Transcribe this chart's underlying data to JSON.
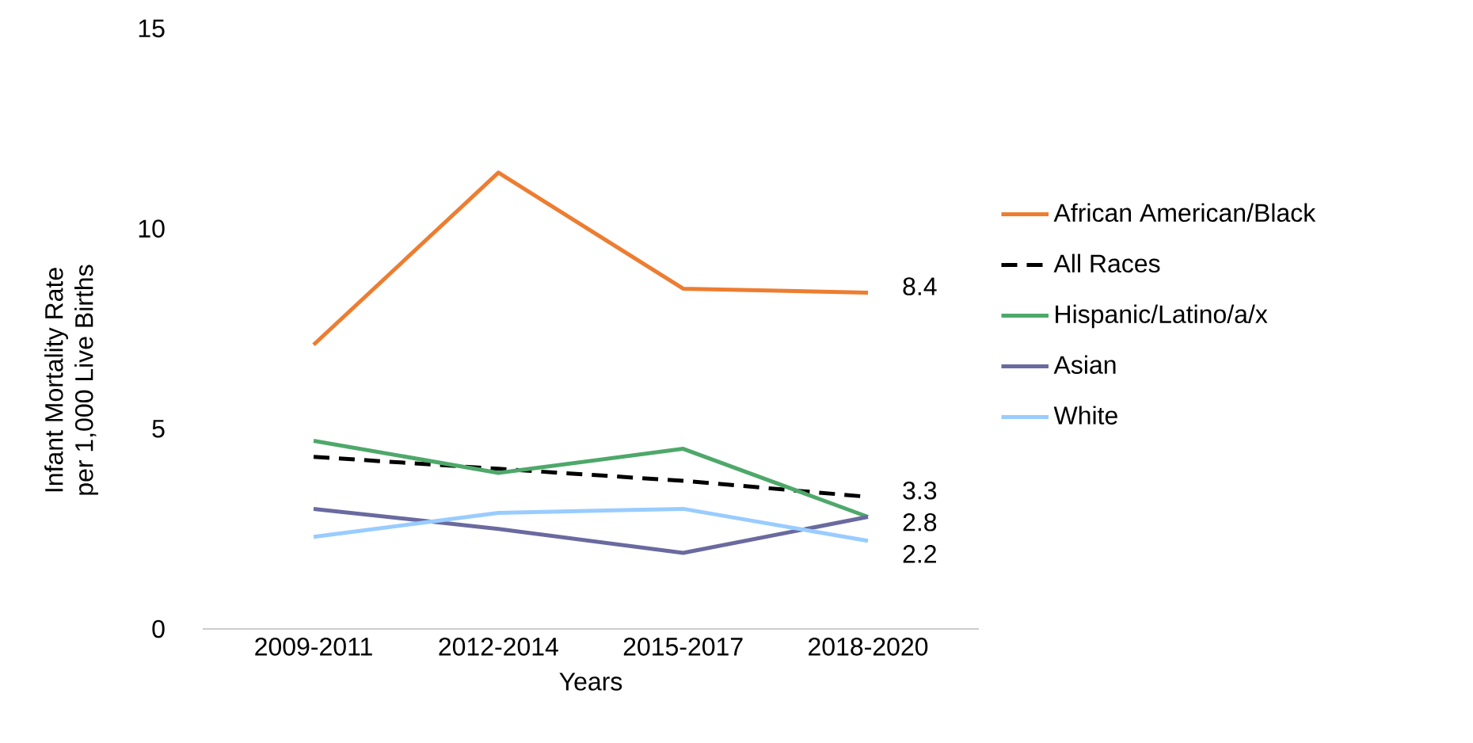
{
  "chart_data": {
    "type": "line",
    "xlabel": "Years",
    "ylabel": "Infant Mortality Rate\nper 1,000 Live Births",
    "categories": [
      "2009-2011",
      "2012-2014",
      "2015-2017",
      "2018-2020"
    ],
    "series": [
      {
        "name": "African American/Black",
        "color": "#ed7d31",
        "values": [
          7.1,
          11.4,
          8.5,
          8.4
        ],
        "value_labels": [
          null,
          null,
          null,
          "8.4"
        ]
      },
      {
        "name": "All Races",
        "color": "#000000",
        "line_style": "dashed",
        "values": [
          4.3,
          4.0,
          3.7,
          3.3
        ],
        "value_labels": [
          null,
          null,
          null,
          "3.3"
        ]
      },
      {
        "name": "Hispanic/Latino/a/x",
        "color": "#4ea86a",
        "values": [
          4.7,
          3.9,
          4.5,
          2.8
        ]
      },
      {
        "name": "Asian",
        "color": "#6a6aa0",
        "values": [
          3.0,
          2.5,
          1.9,
          2.8
        ],
        "value_labels": [
          null,
          null,
          null,
          "2.8"
        ]
      },
      {
        "name": "White",
        "color": "#99ccff",
        "values": [
          2.3,
          2.9,
          3.0,
          2.2
        ],
        "value_labels": [
          null,
          null,
          null,
          "2.2"
        ]
      }
    ],
    "ylim": [
      0,
      15
    ],
    "yticks": [
      0,
      5,
      10,
      15
    ],
    "grid": false,
    "legend": "right",
    "marker": "none",
    "line_style": "solid"
  }
}
